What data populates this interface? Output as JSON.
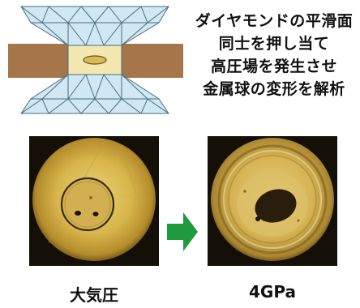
{
  "description_lines": [
    "ダイヤモンドの平滑面",
    "同士を押し当て",
    "高圧場を発生させ",
    "金属球の変形を解析"
  ],
  "photo_before_label": "大気圧",
  "photo_after_label": "4GPa",
  "colors": {
    "diamond_fill": "#cfe8f3",
    "diamond_stroke": "#4a6c7e",
    "gasket": "#a5764a",
    "arrow": "#1f9a3e",
    "photo_bg": "#141008",
    "photo_yellow": "#d9b64c"
  }
}
